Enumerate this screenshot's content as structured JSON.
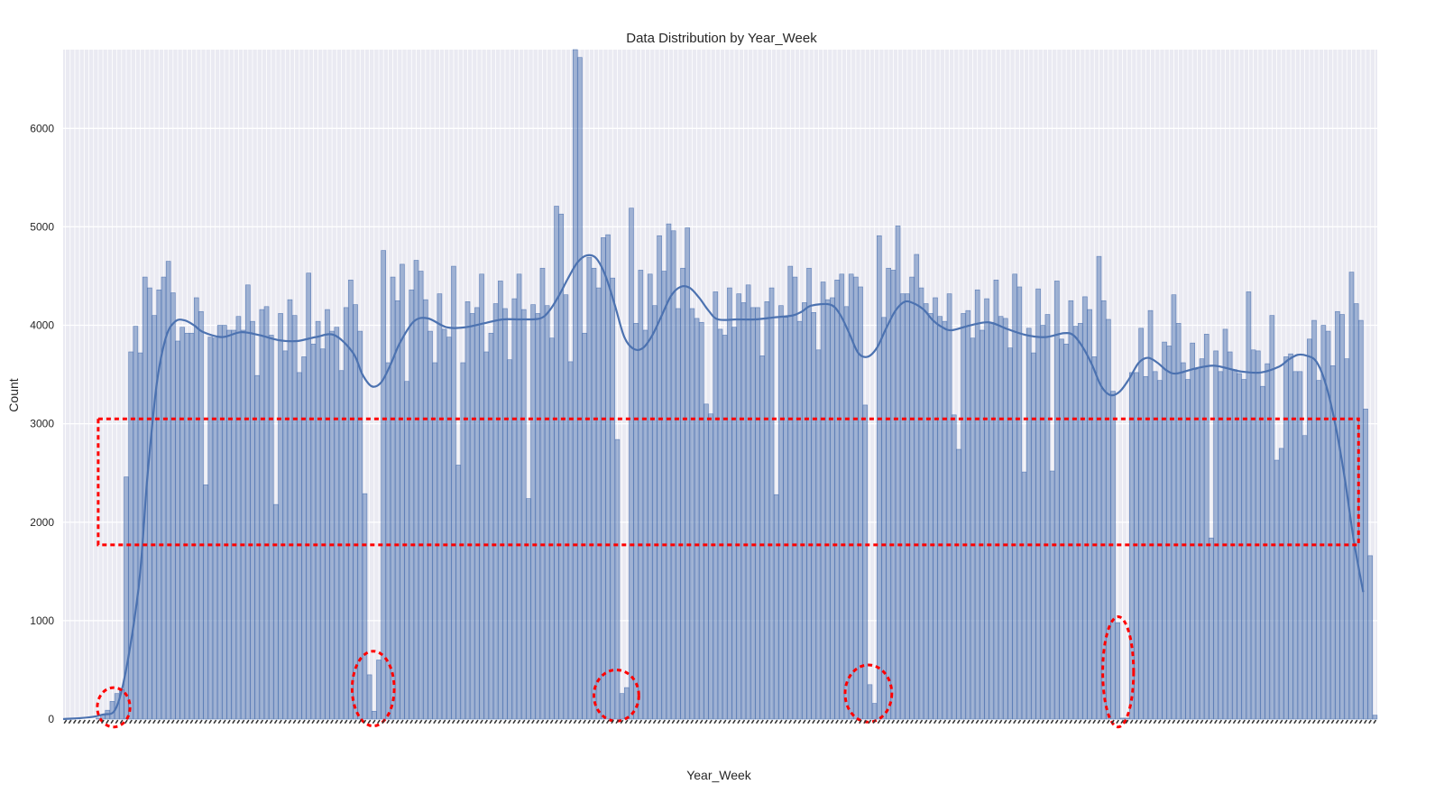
{
  "chart_data": {
    "type": "bar",
    "title": "Data Distribution by Year_Week",
    "xlabel": "Year_Week",
    "ylabel": "Count",
    "ylim": [
      0,
      6800
    ],
    "yticks": [
      0,
      1000,
      2000,
      3000,
      4000,
      5000,
      6000
    ],
    "grid": true,
    "kde_overlay": true,
    "colors": {
      "plot_background": "#eaeaf2",
      "grid": "#ffffff",
      "bar_fill": "#4c72b0",
      "bar_edge": "#4c72b0",
      "kde_line": "#4c72b0",
      "annotation": "#ff0000"
    },
    "values": [
      0,
      0,
      0,
      0,
      0,
      0,
      0,
      10,
      40,
      90,
      180,
      260,
      300,
      2460,
      3730,
      3990,
      3720,
      4490,
      4380,
      4100,
      4360,
      4490,
      4650,
      4330,
      3840,
      3980,
      3920,
      3920,
      4280,
      4140,
      2380,
      3880,
      3870,
      4000,
      4000,
      3950,
      3950,
      4090,
      3950,
      4410,
      4040,
      3490,
      4160,
      4190,
      3900,
      2180,
      4120,
      3740,
      4260,
      4100,
      3520,
      3680,
      4530,
      3810,
      4040,
      3760,
      4160,
      3940,
      3980,
      3540,
      4180,
      4460,
      4210,
      3940,
      2290,
      450,
      80,
      600,
      4760,
      3620,
      4490,
      4250,
      4620,
      3430,
      4360,
      4660,
      4550,
      4260,
      3940,
      3620,
      4320,
      3960,
      3880,
      4600,
      2580,
      3620,
      4240,
      4120,
      4180,
      4520,
      3730,
      3920,
      4220,
      4450,
      4170,
      3650,
      4270,
      4520,
      4160,
      2240,
      4210,
      4120,
      4580,
      4200,
      3870,
      5210,
      5130,
      4310,
      3630,
      6800,
      6720,
      3920,
      4690,
      4580,
      4380,
      4890,
      4920,
      4480,
      2840,
      260,
      320,
      5190,
      4020,
      4560,
      3950,
      4520,
      4200,
      4910,
      4550,
      5030,
      4960,
      4170,
      4580,
      4990,
      4170,
      4070,
      4030,
      3200,
      3100,
      4340,
      3960,
      3900,
      4380,
      3980,
      4320,
      4230,
      4410,
      4180,
      4180,
      3690,
      4240,
      4380,
      2280,
      4200,
      4080,
      4600,
      4490,
      4040,
      4230,
      4580,
      4130,
      3750,
      4440,
      4260,
      4280,
      4460,
      4520,
      4190,
      4520,
      4490,
      4390,
      3190,
      350,
      160,
      4910,
      4080,
      4580,
      4560,
      5010,
      4320,
      4320,
      4490,
      4720,
      4380,
      4220,
      4120,
      4280,
      4090,
      4040,
      4320,
      3090,
      2740,
      4120,
      4150,
      3870,
      4360,
      3950,
      4270,
      4030,
      4460,
      4090,
      4070,
      3770,
      4520,
      4390,
      2510,
      3970,
      3720,
      4370,
      4000,
      4110,
      2520,
      4450,
      3860,
      3810,
      4250,
      3990,
      4020,
      4290,
      4160,
      3680,
      4700,
      4250,
      4060,
      3330,
      980,
      10,
      10,
      3520,
      3520,
      3970,
      3480,
      4150,
      3530,
      3440,
      3830,
      3790,
      4310,
      4020,
      3620,
      3450,
      3820,
      3550,
      3660,
      3910,
      1840,
      3740,
      3530,
      3960,
      3730,
      3550,
      3510,
      3450,
      4340,
      3750,
      3740,
      3380,
      3610,
      4100,
      2630,
      2750,
      3680,
      3710,
      3530,
      3530,
      2880,
      3860,
      4050,
      3440,
      4000,
      3940,
      3590,
      4140,
      4110,
      3660,
      4540,
      4220,
      4050,
      3150,
      1660,
      40
    ],
    "kde": [
      [
        0,
        0
      ],
      [
        8,
        40
      ],
      [
        12,
        200
      ],
      [
        16,
        1280
      ],
      [
        18,
        2450
      ],
      [
        20,
        3400
      ],
      [
        22,
        3880
      ],
      [
        24,
        4040
      ],
      [
        26,
        4050
      ],
      [
        28,
        4000
      ],
      [
        30,
        3930
      ],
      [
        34,
        3880
      ],
      [
        38,
        3930
      ],
      [
        42,
        3900
      ],
      [
        46,
        3850
      ],
      [
        50,
        3840
      ],
      [
        54,
        3880
      ],
      [
        58,
        3900
      ],
      [
        62,
        3720
      ],
      [
        64,
        3500
      ],
      [
        66,
        3380
      ],
      [
        68,
        3420
      ],
      [
        70,
        3600
      ],
      [
        72,
        3820
      ],
      [
        75,
        4040
      ],
      [
        78,
        4070
      ],
      [
        82,
        3980
      ],
      [
        86,
        3980
      ],
      [
        90,
        4020
      ],
      [
        94,
        4060
      ],
      [
        98,
        4060
      ],
      [
        102,
        4070
      ],
      [
        104,
        4150
      ],
      [
        106,
        4300
      ],
      [
        108,
        4480
      ],
      [
        110,
        4640
      ],
      [
        112,
        4710
      ],
      [
        114,
        4680
      ],
      [
        116,
        4500
      ],
      [
        118,
        4200
      ],
      [
        120,
        3880
      ],
      [
        122,
        3760
      ],
      [
        124,
        3770
      ],
      [
        126,
        3900
      ],
      [
        128,
        4100
      ],
      [
        130,
        4300
      ],
      [
        132,
        4390
      ],
      [
        134,
        4380
      ],
      [
        136,
        4280
      ],
      [
        138,
        4150
      ],
      [
        140,
        4060
      ],
      [
        144,
        4060
      ],
      [
        148,
        4060
      ],
      [
        152,
        4080
      ],
      [
        156,
        4100
      ],
      [
        158,
        4140
      ],
      [
        160,
        4200
      ],
      [
        164,
        4210
      ],
      [
        166,
        4120
      ],
      [
        168,
        3930
      ],
      [
        170,
        3720
      ],
      [
        172,
        3680
      ],
      [
        174,
        3770
      ],
      [
        176,
        3970
      ],
      [
        178,
        4150
      ],
      [
        180,
        4240
      ],
      [
        182,
        4220
      ],
      [
        184,
        4160
      ],
      [
        186,
        4050
      ],
      [
        188,
        3980
      ],
      [
        190,
        3950
      ],
      [
        194,
        4000
      ],
      [
        198,
        4030
      ],
      [
        202,
        3960
      ],
      [
        206,
        3900
      ],
      [
        210,
        3880
      ],
      [
        214,
        3920
      ],
      [
        216,
        3900
      ],
      [
        218,
        3780
      ],
      [
        220,
        3600
      ],
      [
        222,
        3380
      ],
      [
        224,
        3290
      ],
      [
        226,
        3330
      ],
      [
        228,
        3460
      ],
      [
        230,
        3620
      ],
      [
        232,
        3670
      ],
      [
        234,
        3620
      ],
      [
        236,
        3540
      ],
      [
        238,
        3510
      ],
      [
        242,
        3560
      ],
      [
        246,
        3590
      ],
      [
        250,
        3550
      ],
      [
        252,
        3530
      ],
      [
        256,
        3520
      ],
      [
        260,
        3580
      ],
      [
        262,
        3650
      ],
      [
        264,
        3700
      ],
      [
        266,
        3690
      ],
      [
        268,
        3630
      ],
      [
        270,
        3400
      ],
      [
        272,
        3000
      ],
      [
        274,
        2460
      ],
      [
        276,
        1810
      ],
      [
        278,
        1290
      ]
    ],
    "annotations": [
      {
        "type": "rectangle",
        "style": "dashed",
        "x_range": [
          7.5,
          277.0
        ],
        "y_range": [
          1770,
          3050
        ]
      },
      {
        "type": "ellipse",
        "style": "dashed",
        "x_center": 10.8,
        "x_radius": 3.5,
        "y_center": 120,
        "y_radius": 200
      },
      {
        "type": "ellipse",
        "style": "dashed",
        "x_center": 66.3,
        "x_radius": 4.5,
        "y_center": 310,
        "y_radius": 380
      },
      {
        "type": "ellipse",
        "style": "dashed",
        "x_center": 118.3,
        "x_radius": 4.8,
        "y_center": 240,
        "y_radius": 260
      },
      {
        "type": "ellipse",
        "style": "dashed",
        "x_center": 172.2,
        "x_radius": 5.0,
        "y_center": 260,
        "y_radius": 290
      },
      {
        "type": "ellipse",
        "style": "dashed",
        "x_center": 225.6,
        "x_radius": 3.3,
        "y_center": 480,
        "y_radius": 560
      }
    ]
  }
}
